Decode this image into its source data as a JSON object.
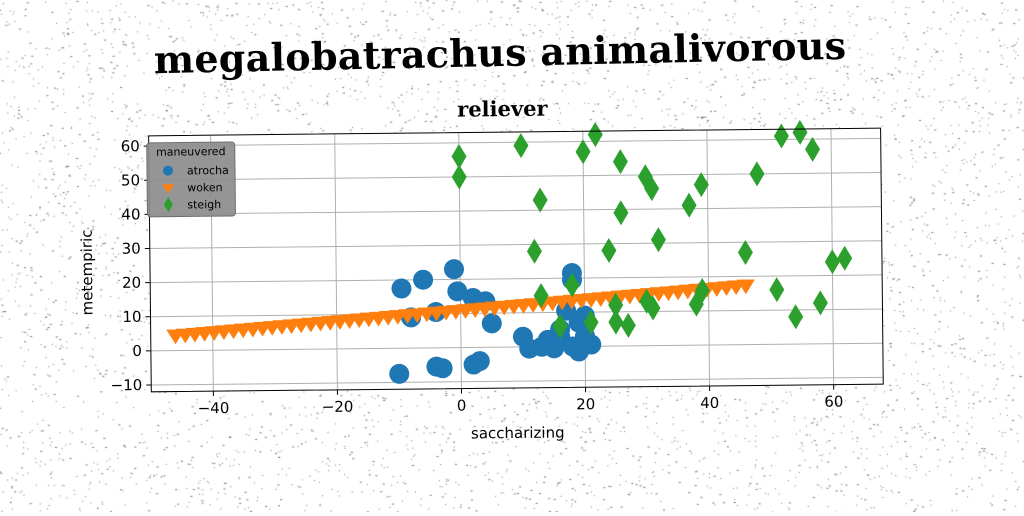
{
  "chart_data": {
    "type": "scatter",
    "suptitle": "megalobatrachus animalivorous",
    "title": "reliever",
    "xlabel": "saccharizing",
    "ylabel": "metempiric",
    "xlim": [
      -50,
      68
    ],
    "ylim": [
      -12,
      63
    ],
    "xticks": [
      -40,
      -20,
      0,
      20,
      40,
      60
    ],
    "yticks": [
      -10,
      0,
      10,
      20,
      30,
      40,
      50,
      60
    ],
    "grid": true,
    "legend": {
      "title": "maneuvered",
      "position": "upper-left"
    },
    "series": [
      {
        "name": "atrocha",
        "marker": "circle",
        "color": "#1f77b4",
        "points": [
          [
            -10,
            -7.5
          ],
          [
            -9.5,
            17.5
          ],
          [
            -8,
            9
          ],
          [
            -6,
            20
          ],
          [
            -4,
            10.5
          ],
          [
            -4,
            -5.5
          ],
          [
            -3,
            -6
          ],
          [
            -1,
            23
          ],
          [
            -0.5,
            16.5
          ],
          [
            2,
            -5
          ],
          [
            3,
            -4
          ],
          [
            2,
            14.5
          ],
          [
            4,
            13.5
          ],
          [
            5,
            7
          ],
          [
            10,
            3
          ],
          [
            11,
            -0.5
          ],
          [
            13,
            0
          ],
          [
            14,
            2
          ],
          [
            15,
            -0.5
          ],
          [
            16,
            3
          ],
          [
            16,
            5
          ],
          [
            17,
            10.5
          ],
          [
            18,
            21.5
          ],
          [
            18,
            19.5
          ],
          [
            19,
            7
          ],
          [
            19,
            -1.5
          ],
          [
            20,
            9
          ],
          [
            20,
            3
          ],
          [
            21,
            0.5
          ],
          [
            18,
            0
          ]
        ]
      },
      {
        "name": "woken",
        "marker": "triangle-down",
        "color": "#ff7f0e",
        "x_range": [
          -46,
          46
        ],
        "count": 60,
        "y_intercept": 11,
        "slope": 0.14
      },
      {
        "name": "steigh",
        "marker": "diamond",
        "color": "#2ca02c",
        "points": [
          [
            0,
            56
          ],
          [
            0,
            50
          ],
          [
            10,
            59
          ],
          [
            12,
            28
          ],
          [
            13,
            43
          ],
          [
            13,
            15
          ],
          [
            16,
            6
          ],
          [
            18,
            18
          ],
          [
            20,
            57
          ],
          [
            21,
            7
          ],
          [
            22,
            62
          ],
          [
            24,
            28
          ],
          [
            25,
            12
          ],
          [
            25,
            7
          ],
          [
            26,
            54
          ],
          [
            26,
            39
          ],
          [
            27,
            6
          ],
          [
            30,
            49.5
          ],
          [
            30,
            13
          ],
          [
            31,
            46
          ],
          [
            31,
            11
          ],
          [
            32,
            31
          ],
          [
            37,
            41
          ],
          [
            38,
            12
          ],
          [
            39,
            47
          ],
          [
            39,
            16
          ],
          [
            48,
            50
          ],
          [
            46,
            27
          ],
          [
            51,
            16
          ],
          [
            52,
            61
          ],
          [
            54,
            8
          ],
          [
            55,
            62
          ],
          [
            57,
            57
          ],
          [
            58,
            12
          ],
          [
            60,
            24
          ],
          [
            62,
            25
          ]
        ]
      }
    ]
  }
}
